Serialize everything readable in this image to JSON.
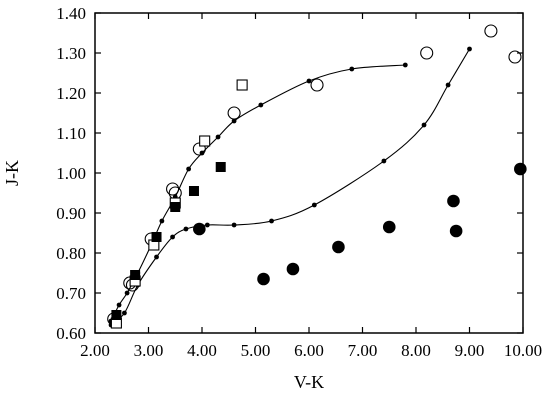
{
  "chart_data": {
    "type": "scatter",
    "title": "",
    "xlabel": "V-K",
    "ylabel": "J-K",
    "xlim": [
      2.0,
      10.0
    ],
    "ylim": [
      0.6,
      1.4
    ],
    "grid": false,
    "legend": "none",
    "x_ticks": [
      "2.00",
      "3.00",
      "4.00",
      "5.00",
      "6.00",
      "7.00",
      "8.00",
      "9.00",
      "10.00"
    ],
    "y_ticks": [
      "0.60",
      "0.70",
      "0.80",
      "0.90",
      "1.00",
      "1.10",
      "1.20",
      "1.30",
      "1.40"
    ],
    "curves": [
      {
        "points": [
          [
            2.3,
            0.63
          ],
          [
            2.45,
            0.67
          ],
          [
            2.6,
            0.7
          ],
          [
            2.8,
            0.75
          ],
          [
            3.05,
            0.82
          ],
          [
            3.25,
            0.88
          ],
          [
            3.5,
            0.94
          ],
          [
            3.75,
            1.01
          ],
          [
            4.0,
            1.05
          ],
          [
            4.3,
            1.09
          ],
          [
            4.6,
            1.13
          ],
          [
            5.1,
            1.17
          ],
          [
            6.0,
            1.23
          ],
          [
            6.8,
            1.26
          ],
          [
            7.8,
            1.27
          ]
        ]
      },
      {
        "points": [
          [
            2.3,
            0.62
          ],
          [
            2.55,
            0.65
          ],
          [
            2.8,
            0.72
          ],
          [
            3.15,
            0.79
          ],
          [
            3.45,
            0.84
          ],
          [
            3.7,
            0.86
          ],
          [
            4.1,
            0.87
          ],
          [
            4.6,
            0.87
          ],
          [
            5.3,
            0.88
          ],
          [
            6.1,
            0.92
          ],
          [
            7.4,
            1.03
          ],
          [
            8.15,
            1.12
          ],
          [
            8.6,
            1.22
          ],
          [
            9.0,
            1.31
          ]
        ]
      }
    ],
    "series": [
      {
        "marker": "open-circle",
        "points": [
          [
            2.35,
            0.635
          ],
          [
            2.7,
            0.72
          ],
          [
            2.65,
            0.725
          ],
          [
            3.05,
            0.835
          ],
          [
            3.45,
            0.96
          ],
          [
            3.5,
            0.95
          ],
          [
            3.95,
            1.06
          ],
          [
            4.6,
            1.15
          ],
          [
            6.15,
            1.22
          ],
          [
            8.2,
            1.3
          ],
          [
            9.4,
            1.355
          ],
          [
            9.85,
            1.29
          ]
        ]
      },
      {
        "marker": "open-square",
        "points": [
          [
            2.4,
            0.625
          ],
          [
            2.75,
            0.73
          ],
          [
            3.1,
            0.82
          ],
          [
            3.5,
            0.925
          ],
          [
            4.05,
            1.08
          ],
          [
            4.75,
            1.22
          ]
        ]
      },
      {
        "marker": "filled-square",
        "points": [
          [
            2.4,
            0.645
          ],
          [
            2.75,
            0.745
          ],
          [
            3.15,
            0.84
          ],
          [
            3.5,
            0.915
          ],
          [
            3.85,
            0.955
          ],
          [
            4.35,
            1.015
          ]
        ]
      },
      {
        "marker": "filled-circle",
        "points": [
          [
            3.95,
            0.86
          ],
          [
            5.15,
            0.735
          ],
          [
            5.7,
            0.76
          ],
          [
            6.55,
            0.815
          ],
          [
            7.5,
            0.865
          ],
          [
            8.7,
            0.93
          ],
          [
            8.75,
            0.855
          ],
          [
            9.95,
            1.01
          ]
        ]
      }
    ]
  },
  "colors": {
    "ink": "#000000",
    "background": "#ffffff"
  }
}
